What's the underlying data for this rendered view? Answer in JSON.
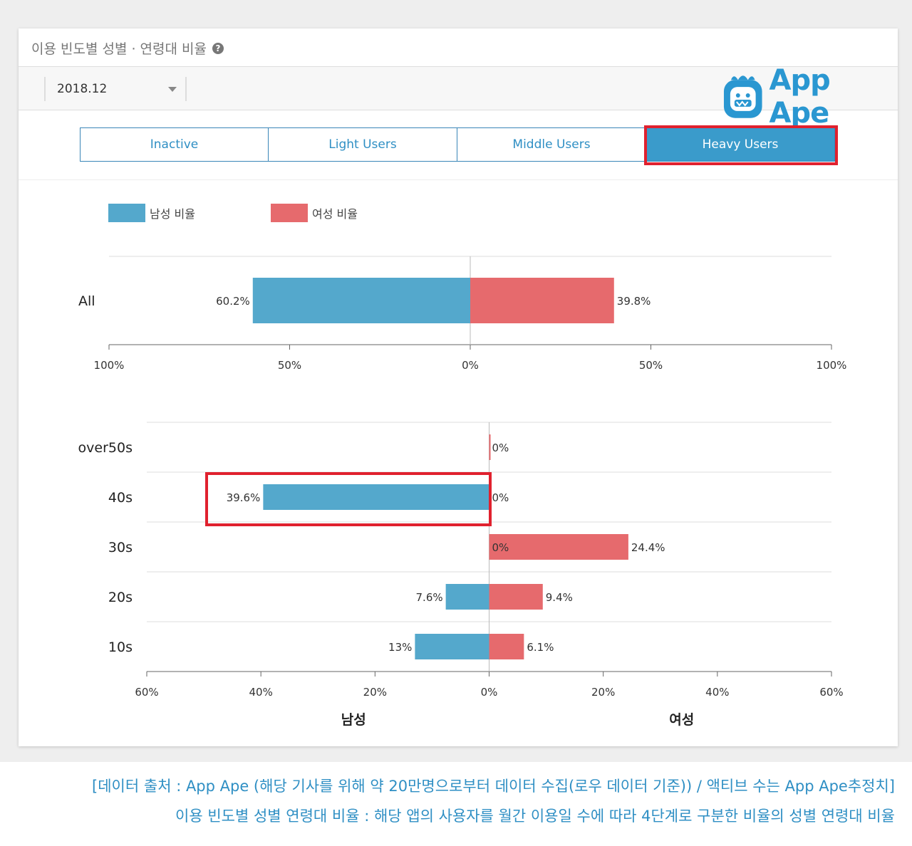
{
  "card": {
    "title": "이용 빈도별 성별 · 연령대 비율",
    "help_icon": "help-icon"
  },
  "period_select": {
    "value": "2018.12",
    "icon": "chevron-down-icon"
  },
  "logo": {
    "text": "App Ape",
    "icon": "app-ape-logo-icon"
  },
  "tabs": [
    {
      "label": "Inactive",
      "active": false
    },
    {
      "label": "Light Users",
      "active": false
    },
    {
      "label": "Middle Users",
      "active": false
    },
    {
      "label": "Heavy Users",
      "active": true
    }
  ],
  "legend": {
    "male": "남성 비율",
    "female": "여성 비율"
  },
  "colors": {
    "male": "#54a8cc",
    "female": "#e66a6d",
    "accent": "#3a9bcb",
    "highlight": "#e0212e",
    "link": "#2f8fc4"
  },
  "chart_data": [
    {
      "type": "bar",
      "orientation": "horizontal-diverging",
      "categories": [
        "All"
      ],
      "series": [
        {
          "name": "남성 비율",
          "values": [
            60.2
          ],
          "labels": [
            "60.2%"
          ]
        },
        {
          "name": "여성 비율",
          "values": [
            39.8
          ],
          "labels": [
            "39.8%"
          ]
        }
      ],
      "xlim": [
        -100,
        100
      ],
      "x_tick_labels": [
        "100%",
        "50%",
        "0%",
        "50%",
        "100%"
      ]
    },
    {
      "type": "bar",
      "orientation": "horizontal-diverging",
      "categories": [
        "over50s",
        "40s",
        "30s",
        "20s",
        "10s"
      ],
      "series": [
        {
          "name": "남성 비율",
          "values": [
            0,
            39.6,
            0,
            7.6,
            13
          ],
          "labels": [
            "",
            "39.6%",
            "",
            "7.6%",
            "13%"
          ]
        },
        {
          "name": "여성 비율",
          "values": [
            0,
            0,
            24.4,
            9.4,
            6.1
          ],
          "labels": [
            "0%",
            "0%",
            "24.4%",
            "9.4%",
            "6.1%"
          ]
        }
      ],
      "zero_labels": [
        "",
        "",
        "0%",
        "",
        ""
      ],
      "xlim": [
        -60,
        60
      ],
      "x_tick_labels": [
        "60%",
        "40%",
        "20%",
        "0%",
        "20%",
        "40%",
        "60%"
      ],
      "xlabel_left": "남성",
      "xlabel_right": "여성"
    }
  ],
  "footnotes": [
    "[데이터 출처 : App Ape (해당 기사를 위해 약 20만명으로부터 데이터 수집(로우 데이터 기준)) / 액티브 수는 App Ape추정치]",
    "이용 빈도별 성별 연령대 비율 : 해당 앱의 사용자를 월간 이용일 수에 따라 4단계로 구분한 비율의 성별 연령대 비율"
  ]
}
